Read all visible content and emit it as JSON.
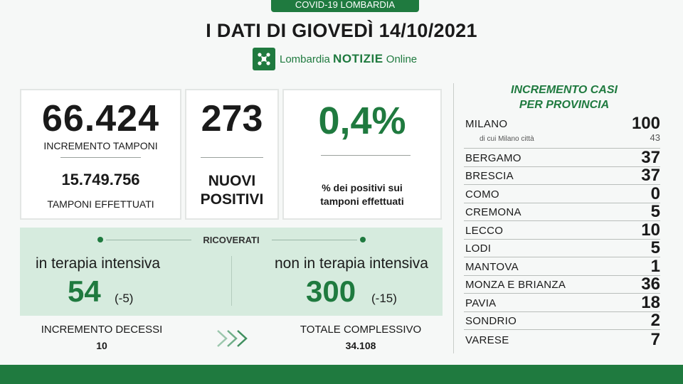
{
  "header": {
    "tag": "COVID-19 LOMBARDIA",
    "title": "I DATI DI GIOVEDÌ 14/10/2021",
    "brand_regular": "Lombardia ",
    "brand_bold": "NOTIZIE",
    "brand_suffix": " Online"
  },
  "tamponi": {
    "increment_value": "66.424",
    "increment_label": "INCREMENTO TAMPONI",
    "total_value": "15.749.756",
    "total_label": "TAMPONI EFFETTUATI"
  },
  "positivi": {
    "value": "273",
    "label_line1": "NUOVI",
    "label_line2": "POSITIVI"
  },
  "percentuale": {
    "value": "0,4%",
    "label_line1": "% dei positivi sui",
    "label_line2": "tamponi effettuati"
  },
  "ricoverati": {
    "title": "RICOVERATI",
    "intensiva": {
      "label": "in terapia intensiva",
      "value": "54",
      "delta": "(-5)"
    },
    "non_intensiva": {
      "label": "non in terapia intensiva",
      "value": "300",
      "delta": "(-15)"
    }
  },
  "decessi": {
    "increment_label": "INCREMENTO DECESSI",
    "increment_value": "10",
    "total_label": "TOTALE COMPLESSIVO",
    "total_value": "34.108"
  },
  "province": {
    "title_line1": "INCREMENTO CASI",
    "title_line2": "PER PROVINCIA",
    "milano": {
      "name": "MILANO",
      "value": "100",
      "sub_label": "di cui Milano città",
      "sub_value": "43"
    },
    "items": [
      {
        "name": "BERGAMO",
        "value": "37"
      },
      {
        "name": "BRESCIA",
        "value": "37"
      },
      {
        "name": "COMO",
        "value": "0"
      },
      {
        "name": "CREMONA",
        "value": "5"
      },
      {
        "name": "LECCO",
        "value": "10"
      },
      {
        "name": "LODI",
        "value": "5"
      },
      {
        "name": "MANTOVA",
        "value": "1"
      },
      {
        "name": "MONZA E BRIANZA",
        "value": "36"
      },
      {
        "name": "PAVIA",
        "value": "18"
      },
      {
        "name": "SONDRIO",
        "value": "2"
      },
      {
        "name": "VARESE",
        "value": "7"
      }
    ]
  },
  "colors": {
    "brand_green": "#1f7a3f",
    "panel_green": "#d6ebde",
    "text_dark": "#1a1a1a"
  }
}
